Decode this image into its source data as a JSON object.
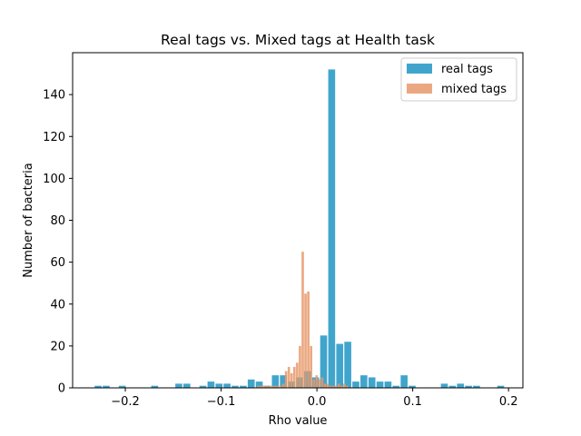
{
  "chart_data": {
    "type": "bar",
    "title": "Real tags vs. Mixed tags at Health task",
    "xlabel": "Rho value",
    "ylabel": "Number of bacteria",
    "xlim": [
      -0.255,
      0.215
    ],
    "ylim": [
      0,
      160
    ],
    "x_ticks": [
      -0.2,
      -0.1,
      0.0,
      0.1,
      0.2
    ],
    "x_tick_labels": [
      "−0.2",
      "−0.1",
      "0.0",
      "0.1",
      "0.2"
    ],
    "y_ticks": [
      0,
      20,
      40,
      60,
      80,
      100,
      120,
      140
    ],
    "y_tick_labels": [
      "0",
      "20",
      "40",
      "60",
      "80",
      "100",
      "120",
      "140"
    ],
    "grid": false,
    "legend_position": "top-right",
    "series": [
      {
        "name": "real tags",
        "color": "#2b9bc8",
        "alpha": 0.9,
        "bin_width": 0.0084,
        "x": [
          -0.2278,
          -0.2194,
          -0.2026,
          -0.1688,
          -0.1436,
          -0.1352,
          -0.1184,
          -0.11,
          -0.1016,
          -0.0932,
          -0.0848,
          -0.0764,
          -0.068,
          -0.0596,
          -0.0512,
          -0.0428,
          -0.0344,
          -0.026,
          -0.0176,
          -0.0092,
          -0.0008,
          0.0076,
          0.016,
          0.0244,
          0.0328,
          0.0412,
          0.0496,
          0.058,
          0.0664,
          0.0748,
          0.0832,
          0.0916,
          0.1,
          0.1084,
          0.1336,
          0.142,
          0.1504,
          0.1588,
          0.1672,
          0.1924
        ],
        "values": [
          1,
          1,
          1,
          1,
          2,
          2,
          1,
          3,
          2,
          2,
          1,
          1,
          4,
          3,
          1,
          6,
          6,
          3,
          5,
          8,
          5,
          25,
          152,
          21,
          22,
          3,
          6,
          5,
          3,
          3,
          1,
          6,
          1,
          0,
          2,
          1,
          2,
          1,
          1,
          1
        ]
      },
      {
        "name": "mixed tags",
        "color": "#e8996a",
        "alpha": 0.85,
        "bin_width": 0.0029,
        "x": [
          -0.061,
          -0.0581,
          -0.0552,
          -0.0523,
          -0.0494,
          -0.0465,
          -0.0436,
          -0.0407,
          -0.0378,
          -0.0349,
          -0.032,
          -0.0291,
          -0.0262,
          -0.0233,
          -0.0204,
          -0.0175,
          -0.0146,
          -0.0117,
          -0.0088,
          -0.0059,
          -0.003,
          -0.0001,
          0.0028,
          0.0057,
          0.0086,
          0.0115,
          0.0144,
          0.0173,
          0.0202,
          0.0231,
          0.026,
          0.0289,
          0.0318
        ],
        "values": [
          1,
          1,
          1,
          1,
          1,
          1,
          1,
          1,
          1,
          2,
          8,
          10,
          7,
          10,
          12,
          20,
          65,
          45,
          46,
          20,
          4,
          6,
          4,
          5,
          2,
          2,
          1,
          1,
          1,
          2,
          1,
          2,
          1
        ]
      }
    ]
  }
}
